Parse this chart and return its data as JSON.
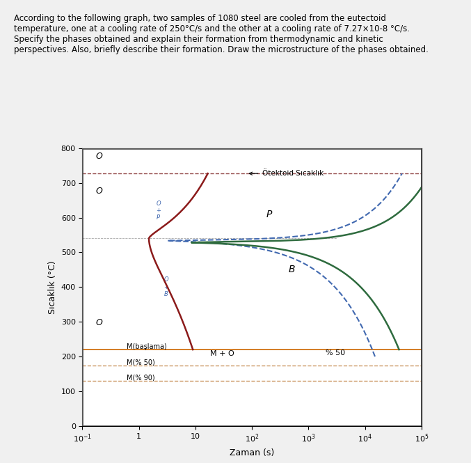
{
  "title_text": "According to the following graph, two samples of 1080 steel are cooled from the eutectoid\ntemperature, one at a cooling rate of 250°C/s and the other at a cooling rate of 7.27×10-8 °C/s.\nSpecify the phases obtained and explain their formation from thermodynamic and kinetic\nperspectives. Also, briefly describe their formation. Draw the microstructure of the phases obtained.",
  "ylabel": "Sıcaklık (°C)",
  "xlabel": "Zaman (s)",
  "eutectoid_temp": 727,
  "Ms_temp": 220,
  "M50_temp": 175,
  "M90_temp": 130,
  "nose_temp": 540,
  "nose_time": 1.5,
  "curve_color_outer": "#8B1A1A",
  "curve_color_inner": "#2E6B3E",
  "dashed_color": "#4169B0",
  "eutectoid_color": "#8B1A1A",
  "Ms_color": "#CC6600",
  "M50_color": "#CC9966",
  "M90_color": "#CC9966",
  "background_outer": "#F5F5F0",
  "background_inner": "#FFFFFF"
}
